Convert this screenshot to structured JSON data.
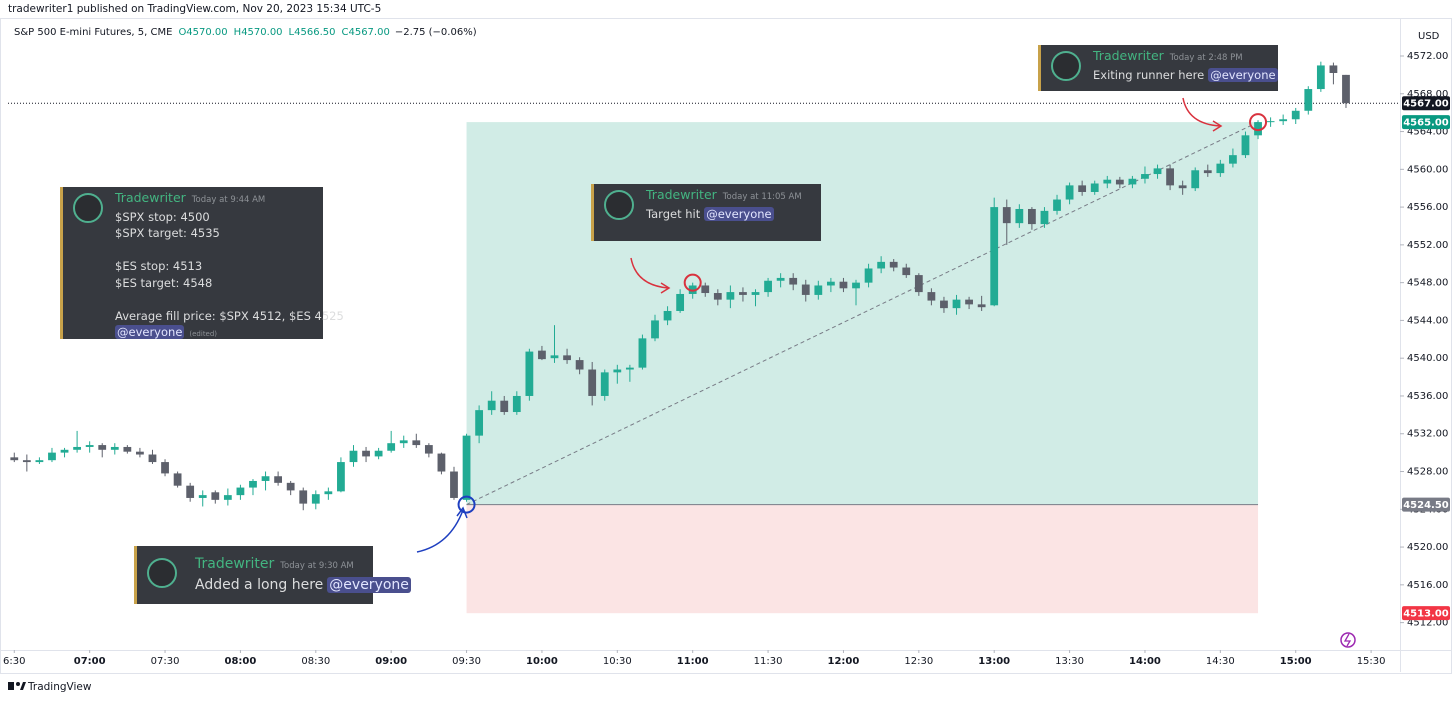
{
  "header": {
    "publisher": "tradewriter1 published on TradingView.com, Nov 20, 2023 15:34 UTC-5",
    "symbol": "S&P 500 E-mini Futures, 5, CME",
    "ohlc": [
      "O4570.00",
      "H4570.00",
      "L4566.50",
      "C4567.00"
    ],
    "change": "−2.75 (−0.06%)"
  },
  "footer": "TradingView",
  "annotations": [
    {
      "author": "Tradewriter",
      "time": "Today at 9:44 AM",
      "paragraphs": [
        [
          "$SPX stop: 4500",
          "$SPX target: 4535"
        ],
        [
          "$ES stop: 4513",
          "$ES target: 4548"
        ],
        [
          "Average fill price: $SPX 4512, $ES 4525"
        ]
      ],
      "mention": "@everyone",
      "edited": "(edited)"
    },
    {
      "author": "Tradewriter",
      "time": "Today at 11:05 AM",
      "paragraphs": [
        [
          "Target hit"
        ]
      ],
      "mention": "@everyone"
    },
    {
      "author": "Tradewriter",
      "time": "Today at 9:30 AM",
      "paragraphs": [
        [
          "Added a long here"
        ]
      ],
      "mention": "@everyone"
    },
    {
      "author": "Tradewriter",
      "time": "Today at 2:48 PM",
      "paragraphs": [
        [
          "Exiting runner here"
        ]
      ],
      "mention": "@everyone"
    }
  ],
  "chart_data": {
    "type": "candlestick",
    "currency": "USD",
    "up_color": "#22ab94",
    "down_color": "#5d606b",
    "xlim": [
      -0.5,
      110.3
    ],
    "ylim": [
      4509.1,
      4575.6
    ],
    "xticks": [
      {
        "value": 0,
        "label": "6:30"
      },
      {
        "value": 6,
        "label": "07:00"
      },
      {
        "value": 12,
        "label": "07:30"
      },
      {
        "value": 18,
        "label": "08:00"
      },
      {
        "value": 24,
        "label": "08:30"
      },
      {
        "value": 30,
        "label": "09:00"
      },
      {
        "value": 36,
        "label": "09:30"
      },
      {
        "value": 42,
        "label": "10:00"
      },
      {
        "value": 48,
        "label": "10:30"
      },
      {
        "value": 54,
        "label": "11:00"
      },
      {
        "value": 60,
        "label": "11:30"
      },
      {
        "value": 66,
        "label": "12:00"
      },
      {
        "value": 72,
        "label": "12:30"
      },
      {
        "value": 78,
        "label": "13:00"
      },
      {
        "value": 84,
        "label": "13:30"
      },
      {
        "value": 90,
        "label": "14:00"
      },
      {
        "value": 96,
        "label": "14:30"
      },
      {
        "value": 102,
        "label": "15:00"
      },
      {
        "value": 108,
        "label": "15:30"
      }
    ],
    "yticks": [
      {
        "value": 4512,
        "label": "4512.00"
      },
      {
        "value": 4516,
        "label": "4516.00"
      },
      {
        "value": 4520,
        "label": "4520.00"
      },
      {
        "value": 4524,
        "label": "4524.00"
      },
      {
        "value": 4528,
        "label": "4528.00"
      },
      {
        "value": 4532,
        "label": "4532.00"
      },
      {
        "value": 4536,
        "label": "4536.00"
      },
      {
        "value": 4540,
        "label": "4540.00"
      },
      {
        "value": 4544,
        "label": "4544.00"
      },
      {
        "value": 4548,
        "label": "4548.00"
      },
      {
        "value": 4552,
        "label": "4552.00"
      },
      {
        "value": 4556,
        "label": "4556.00"
      },
      {
        "value": 4560,
        "label": "4560.00"
      },
      {
        "value": 4564,
        "label": "4564.00"
      },
      {
        "value": 4568,
        "label": "4568.00"
      },
      {
        "value": 4572,
        "label": "4572.00"
      }
    ],
    "open": [
      4529.5,
      4529.2,
      4529,
      4529.2,
      4530,
      4530.3,
      4530.6,
      4530.8,
      4530.3,
      4530.6,
      4530.1,
      4529.8,
      4529,
      4527.8,
      4526.5,
      4525.2,
      4525.8,
      4525,
      4525.5,
      4526.3,
      4527,
      4527.5,
      4526.8,
      4526,
      4524.6,
      4525.6,
      4525.9,
      4529,
      4530.2,
      4529.6,
      4530.2,
      4531,
      4531.3,
      4530.8,
      4529.9,
      4528,
      4525,
      4531.8,
      4534.5,
      4535.5,
      4534.3,
      4536,
      4540.8,
      4540,
      4540.3,
      4539.8,
      4538.8,
      4536,
      4538.5,
      4538.8,
      4539,
      4542.1,
      4544,
      4545,
      4546.8,
      4547.7,
      4546.9,
      4546.2,
      4547,
      4546.7,
      4547,
      4548.2,
      4548.5,
      4547.8,
      4546.7,
      4547.7,
      4548.1,
      4547.4,
      4548,
      4549.5,
      4550.2,
      4549.6,
      4548.8,
      4547,
      4546.1,
      4545.3,
      4546.2,
      4545.7,
      4545.6,
      4556,
      4554.3,
      4555.8,
      4554.2,
      4555.6,
      4556.8,
      4558.3,
      4557.6,
      4558.5,
      4558.9,
      4558.4,
      4559,
      4559.5,
      4560.1,
      4558.3,
      4558,
      4559.9,
      4559.6,
      4560.6,
      4561.5,
      4563.6,
      4565,
      4565.1,
      4565.3,
      4566.2,
      4568.5,
      4571,
      4570
    ],
    "high": [
      4530,
      4529.8,
      4529.5,
      4530.5,
      4530.5,
      4532.3,
      4531.2,
      4531,
      4531,
      4530.8,
      4530.5,
      4530.3,
      4529.3,
      4528,
      4526.8,
      4526,
      4526,
      4526.2,
      4526.6,
      4527.2,
      4528,
      4528,
      4527,
      4526.3,
      4526,
      4526.3,
      4529.5,
      4530.8,
      4530.6,
      4530.5,
      4532.3,
      4531.8,
      4532,
      4531,
      4530,
      4528.5,
      4532,
      4535,
      4536.5,
      4536,
      4536.5,
      4541,
      4541.3,
      4543.5,
      4541,
      4540.1,
      4539.6,
      4538.8,
      4539.3,
      4539.3,
      4542.5,
      4544.6,
      4545.5,
      4547.3,
      4548,
      4548,
      4547.3,
      4547.7,
      4547.5,
      4547.3,
      4548.5,
      4549,
      4549,
      4548.3,
      4548.2,
      4548.5,
      4548.5,
      4548.3,
      4550,
      4550.8,
      4550.5,
      4550,
      4549,
      4547.4,
      4546.5,
      4546.7,
      4546.5,
      4546.6,
      4557,
      4556.8,
      4556.3,
      4556,
      4556,
      4557.3,
      4558.6,
      4558.8,
      4558.8,
      4559.3,
      4559.2,
      4559.3,
      4560.3,
      4560.5,
      4560.5,
      4558.8,
      4560.2,
      4560.5,
      4561,
      4562.2,
      4564,
      4565.2,
      4565.5,
      4565.8,
      4566.5,
      4568.8,
      4571.4,
      4571.3,
      4570
    ],
    "low": [
      4529,
      4528,
      4528.8,
      4529,
      4529.5,
      4530,
      4530,
      4529.5,
      4529.8,
      4529.9,
      4529.5,
      4528.8,
      4527.5,
      4526.3,
      4524.8,
      4524.3,
      4524.6,
      4524.4,
      4525,
      4525.5,
      4526,
      4526.5,
      4525.5,
      4523.9,
      4524,
      4525,
      4525.8,
      4528.5,
      4529,
      4529.3,
      4530,
      4530.5,
      4530.5,
      4529.5,
      4527.7,
      4525,
      4524.8,
      4531,
      4534,
      4534,
      4534,
      4535.5,
      4539.8,
      4539.5,
      4539.4,
      4538.3,
      4535,
      4535.5,
      4537.3,
      4537.5,
      4538.8,
      4541.8,
      4543.5,
      4544.8,
      4546.3,
      4546.5,
      4545.6,
      4545.3,
      4546,
      4545.5,
      4546.5,
      4547.5,
      4547.2,
      4546,
      4546.2,
      4547,
      4547,
      4545.6,
      4547.5,
      4549,
      4549.2,
      4548.5,
      4546.6,
      4545.6,
      4544.8,
      4544.6,
      4545.2,
      4545,
      4545.5,
      4552,
      4553.8,
      4553.6,
      4553.8,
      4555.2,
      4556.3,
      4557.2,
      4557.3,
      4558,
      4558,
      4558,
      4558.5,
      4559,
      4557.8,
      4557.3,
      4557.7,
      4559.2,
      4559.2,
      4560.2,
      4561.2,
      4563.2,
      4564.5,
      4564.7,
      4564.8,
      4565.8,
      4568.2,
      4569,
      4566.5
    ],
    "close": [
      4529.2,
      4529,
      4529.2,
      4530,
      4530.3,
      4530.6,
      4530.8,
      4530.3,
      4530.6,
      4530.1,
      4529.8,
      4529,
      4527.8,
      4526.5,
      4525.2,
      4525.5,
      4525,
      4525.5,
      4526.3,
      4527,
      4527.5,
      4526.8,
      4526,
      4524.6,
      4525.6,
      4525.9,
      4529,
      4530.2,
      4529.6,
      4530.2,
      4531,
      4531.3,
      4530.8,
      4529.9,
      4528,
      4525.2,
      4531.8,
      4534.5,
      4535.5,
      4534.3,
      4536,
      4540.7,
      4539.9,
      4540.3,
      4539.8,
      4538.8,
      4536,
      4538.5,
      4538.8,
      4539,
      4542.1,
      4544,
      4545,
      4546.8,
      4547.7,
      4546.9,
      4546.2,
      4547,
      4546.7,
      4547,
      4548.2,
      4548.5,
      4547.8,
      4546.7,
      4547.7,
      4548.1,
      4547.4,
      4548,
      4549.5,
      4550.2,
      4549.6,
      4548.8,
      4547,
      4546.1,
      4545.3,
      4546.2,
      4545.7,
      4545.4,
      4556,
      4554.3,
      4555.8,
      4554.2,
      4555.6,
      4556.8,
      4558.3,
      4557.6,
      4558.5,
      4558.9,
      4558.4,
      4559,
      4559.5,
      4560.1,
      4558.3,
      4558,
      4559.9,
      4559.6,
      4560.6,
      4561.5,
      4563.6,
      4565,
      4565.1,
      4565.3,
      4566.2,
      4568.5,
      4571,
      4570.2,
      4567
    ],
    "position": {
      "x": [
        36,
        99
      ],
      "entry": 4524.5,
      "target": 4565,
      "stop": 4513,
      "profit_color": "#d1ece6",
      "loss_color": "#fbe4e4"
    },
    "markers": [
      {
        "x": 36,
        "y": 4524.5,
        "color": "#1e3fc0"
      },
      {
        "x": 54,
        "y": 4548,
        "color": "#d9323e"
      },
      {
        "x": 99,
        "y": 4565,
        "color": "#d9323e"
      }
    ],
    "price_labels": [
      {
        "value": 4567,
        "label": "4567.00",
        "color": "#131722"
      },
      {
        "value": 4565,
        "label": "4565.00",
        "color": "#089981"
      },
      {
        "value": 4524.5,
        "label": "4524.50",
        "color": "#787b86"
      },
      {
        "value": 4513,
        "label": "4513.00",
        "color": "#f23645"
      }
    ]
  }
}
